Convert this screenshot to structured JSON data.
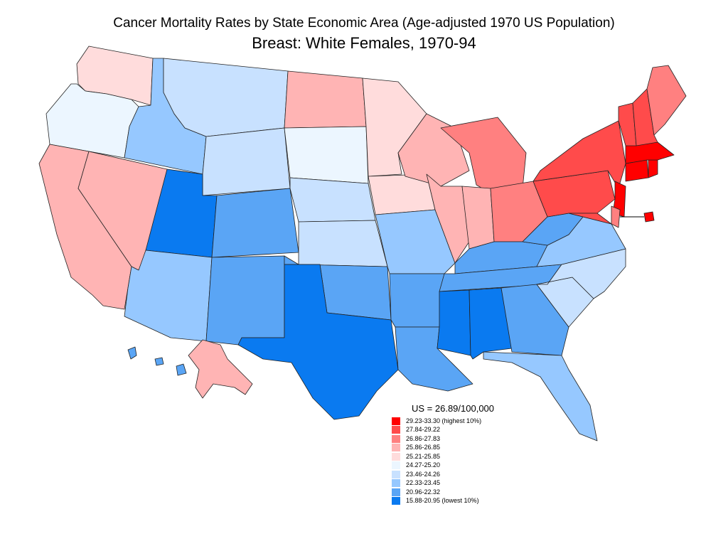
{
  "title": "Cancer Mortality Rates by State Economic Area (Age-adjusted 1970 US Population)",
  "subtitle": "Breast:  White Females, 1970-94",
  "legend": {
    "us_rate": "US = 26.89/100,000",
    "items": [
      {
        "label": "29.23-33.30 (highest 10%)",
        "color": "#ff0000"
      },
      {
        "label": "27.84-29.22",
        "color": "#ff4b4b"
      },
      {
        "label": "26.86-27.83",
        "color": "#ff8080"
      },
      {
        "label": "25.86-26.85",
        "color": "#ffb4b4"
      },
      {
        "label": "25.21-25.85",
        "color": "#ffdcdc"
      },
      {
        "label": "24.27-25.20",
        "color": "#ecf6ff"
      },
      {
        "label": "23.46-24.26",
        "color": "#c8e1ff"
      },
      {
        "label": "22.33-23.45",
        "color": "#96c8ff"
      },
      {
        "label": "20.96-22.32",
        "color": "#5aa5f5"
      },
      {
        "label": "15.88-20.95 (lowest 10%)",
        "color": "#0a7af0"
      }
    ]
  },
  "regions": [
    {
      "name": "Washington",
      "class": 4
    },
    {
      "name": "Oregon",
      "class": 5
    },
    {
      "name": "California",
      "class": 3
    },
    {
      "name": "Nevada",
      "class": 3
    },
    {
      "name": "Idaho",
      "class": 7
    },
    {
      "name": "Montana",
      "class": 6
    },
    {
      "name": "Wyoming",
      "class": 6
    },
    {
      "name": "Utah",
      "class": 9
    },
    {
      "name": "Colorado",
      "class": 8
    },
    {
      "name": "Arizona",
      "class": 7
    },
    {
      "name": "New Mexico",
      "class": 8
    },
    {
      "name": "North Dakota",
      "class": 3
    },
    {
      "name": "South Dakota",
      "class": 5
    },
    {
      "name": "Nebraska",
      "class": 6
    },
    {
      "name": "Kansas",
      "class": 6
    },
    {
      "name": "Oklahoma",
      "class": 8
    },
    {
      "name": "Texas",
      "class": 9
    },
    {
      "name": "Minnesota",
      "class": 4
    },
    {
      "name": "Iowa",
      "class": 4
    },
    {
      "name": "Missouri",
      "class": 7
    },
    {
      "name": "Arkansas",
      "class": 8
    },
    {
      "name": "Louisiana",
      "class": 8
    },
    {
      "name": "Wisconsin",
      "class": 3
    },
    {
      "name": "Illinois",
      "class": 3
    },
    {
      "name": "Michigan",
      "class": 2
    },
    {
      "name": "Indiana",
      "class": 3
    },
    {
      "name": "Ohio",
      "class": 2
    },
    {
      "name": "Kentucky",
      "class": 8
    },
    {
      "name": "Tennessee",
      "class": 8
    },
    {
      "name": "Mississippi",
      "class": 9
    },
    {
      "name": "Alabama",
      "class": 9
    },
    {
      "name": "Georgia",
      "class": 8
    },
    {
      "name": "Florida",
      "class": 7
    },
    {
      "name": "South Carolina",
      "class": 6
    },
    {
      "name": "North Carolina",
      "class": 6
    },
    {
      "name": "Virginia",
      "class": 7
    },
    {
      "name": "West Virginia",
      "class": 8
    },
    {
      "name": "Pennsylvania",
      "class": 1
    },
    {
      "name": "New York",
      "class": 1
    },
    {
      "name": "New Jersey",
      "class": 0
    },
    {
      "name": "Maryland",
      "class": 1
    },
    {
      "name": "Delaware",
      "class": 2
    },
    {
      "name": "Connecticut",
      "class": 0
    },
    {
      "name": "Rhode Island",
      "class": 0
    },
    {
      "name": "Massachusetts",
      "class": 0
    },
    {
      "name": "Vermont",
      "class": 1
    },
    {
      "name": "New Hampshire",
      "class": 1
    },
    {
      "name": "Maine",
      "class": 2
    },
    {
      "name": "Alaska",
      "class": 3
    },
    {
      "name": "Hawaii",
      "class": 8
    },
    {
      "name": "District of Columbia",
      "class": 0
    }
  ]
}
